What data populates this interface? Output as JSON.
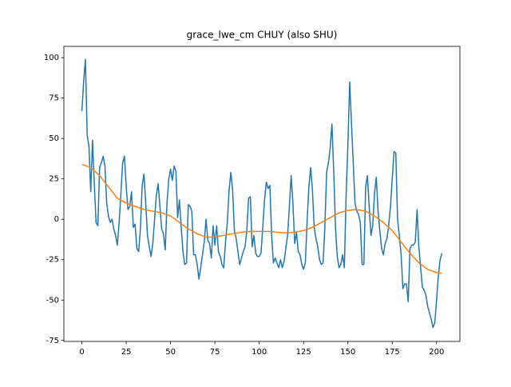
{
  "chart_data": {
    "type": "line",
    "title": "grace_lwe_cm CHUY (also SHU)",
    "x": [
      0,
      1,
      2,
      3,
      4,
      5,
      6,
      7,
      8,
      9,
      10,
      11,
      12,
      13,
      14,
      15,
      16,
      17,
      18,
      19,
      20,
      21,
      22,
      23,
      24,
      25,
      26,
      27,
      28,
      29,
      30,
      31,
      32,
      33,
      34,
      35,
      36,
      37,
      38,
      39,
      40,
      41,
      42,
      43,
      44,
      45,
      46,
      47,
      48,
      49,
      50,
      51,
      52,
      53,
      54,
      55,
      56,
      57,
      58,
      59,
      60,
      61,
      62,
      63,
      64,
      65,
      66,
      67,
      68,
      69,
      70,
      71,
      72,
      73,
      74,
      75,
      76,
      77,
      78,
      79,
      80,
      81,
      82,
      83,
      84,
      85,
      86,
      87,
      88,
      89,
      90,
      91,
      92,
      93,
      94,
      95,
      96,
      97,
      98,
      99,
      100,
      101,
      102,
      103,
      104,
      105,
      106,
      107,
      108,
      109,
      110,
      111,
      112,
      113,
      114,
      115,
      116,
      117,
      118,
      119,
      120,
      121,
      122,
      123,
      124,
      125,
      126,
      127,
      128,
      129,
      130,
      131,
      132,
      133,
      134,
      135,
      136,
      137,
      138,
      139,
      140,
      141,
      142,
      143,
      144,
      145,
      146,
      147,
      148,
      149,
      150,
      151,
      152,
      153,
      154,
      155,
      156,
      157,
      158,
      159,
      160,
      161,
      162,
      163,
      164,
      165,
      166,
      167,
      168,
      169,
      170,
      171,
      172,
      173,
      174,
      175,
      176,
      177,
      178,
      179,
      180,
      181,
      182,
      183,
      184,
      185,
      186,
      187,
      188,
      189,
      190,
      191,
      192,
      193,
      194,
      195,
      196,
      197,
      198,
      199,
      200,
      201,
      202,
      203
    ],
    "series": [
      {
        "color": "#1f77b4",
        "values": [
          67,
          85,
          99,
          52,
          45,
          17,
          49,
          22,
          -2,
          -4,
          32,
          35,
          39,
          33,
          10,
          2,
          -2,
          0,
          -6,
          -10,
          -16,
          -2,
          16,
          35,
          39,
          20,
          6,
          8,
          17,
          -5,
          -3,
          -18,
          -20,
          -6,
          21,
          28,
          10,
          -10,
          -17,
          -23,
          -15,
          0,
          15,
          22,
          8,
          -6,
          -9,
          -19,
          10,
          25,
          31,
          24,
          33,
          30,
          1,
          12,
          -5,
          -20,
          -28,
          -27,
          9,
          8,
          5,
          -22,
          -22,
          -28,
          -37,
          -30,
          -22,
          -14,
          0,
          -13,
          -15,
          -24,
          -4,
          -16,
          -4,
          -20,
          -23,
          -28,
          -30,
          -14,
          -2,
          18,
          29,
          18,
          -7,
          -12,
          -20,
          -28,
          -24,
          -20,
          -17,
          -7,
          13,
          14,
          -17,
          -10,
          -21,
          -23,
          -23,
          -21,
          -5,
          12,
          23,
          19,
          21,
          -10,
          -27,
          -24,
          -27,
          -30,
          -25,
          -30,
          -26,
          -18,
          -10,
          8,
          27,
          10,
          -15,
          -8,
          -20,
          -22,
          -28,
          -31,
          -27,
          -1,
          20,
          32,
          18,
          -5,
          -12,
          -17,
          -25,
          -28,
          -27,
          -5,
          29,
          35,
          44,
          59,
          30,
          -5,
          -23,
          -30,
          -28,
          -22,
          -30,
          15,
          46,
          85,
          60,
          35,
          10,
          5,
          3,
          -2,
          -28,
          -28,
          20,
          27,
          8,
          -10,
          -4,
          16,
          26,
          5,
          -7,
          -18,
          -22,
          -15,
          -12,
          -4,
          8,
          25,
          42,
          41,
          0,
          -10,
          -22,
          -43,
          -40,
          -40,
          -51,
          -18,
          -16,
          -16,
          -14,
          6,
          -17,
          -30,
          -42,
          -44,
          -47,
          -54,
          -58,
          -62,
          -67,
          -64,
          -50,
          -35,
          -25,
          -21
        ]
      },
      {
        "color": "#ff7f0e",
        "values": [
          34,
          33.6,
          33.2,
          32.8,
          32.4,
          32,
          31,
          30,
          29,
          28,
          27,
          25.6,
          24.2,
          22.8,
          21.4,
          20,
          18.6,
          17.2,
          15.8,
          14.4,
          13,
          12.4,
          11.8,
          11.2,
          10.6,
          10,
          9.6,
          9.2,
          8.8,
          8.4,
          8,
          7.6,
          7.2,
          6.8,
          6.4,
          6,
          5.8,
          5.6,
          5.4,
          5.2,
          5,
          4.8,
          4.6,
          4.4,
          4.2,
          4,
          3.6,
          3.2,
          2.8,
          2.4,
          2,
          1.2,
          0.4,
          -0.4,
          -1.2,
          -2,
          -2.8,
          -3.6,
          -4.4,
          -5.2,
          -6,
          -6.6,
          -7.2,
          -7.8,
          -8.4,
          -9,
          -9.4,
          -9.8,
          -10.2,
          -10.6,
          -11,
          -11,
          -11,
          -11,
          -11,
          -11,
          -10.8,
          -10.6,
          -10.4,
          -10.2,
          -10,
          -9.8,
          -9.6,
          -9.4,
          -9.2,
          -9,
          -8.8,
          -8.6,
          -8.4,
          -8.2,
          -8,
          -7.9,
          -7.8,
          -7.7,
          -7.6,
          -7.5,
          -7.5,
          -7.5,
          -7.5,
          -7.5,
          -7.5,
          -7.5,
          -7.5,
          -7.5,
          -7.5,
          -7.5,
          -7.6,
          -7.7,
          -7.8,
          -7.9,
          -8,
          -8.1,
          -8.2,
          -8.3,
          -8.4,
          -8.5,
          -8.4,
          -8.3,
          -8.2,
          -8.1,
          -8,
          -7.8,
          -7.6,
          -7.4,
          -7.2,
          -7,
          -6.6,
          -6.2,
          -5.8,
          -5.4,
          -5,
          -4.4,
          -3.8,
          -3.2,
          -2.6,
          -2,
          -1.4,
          -0.8,
          -0.2,
          0.4,
          1,
          1.6,
          2.2,
          2.8,
          3.4,
          4,
          4.3,
          4.6,
          4.9,
          5.2,
          5.5,
          5.6,
          5.7,
          5.8,
          5.9,
          6,
          5.8,
          5.6,
          5.4,
          5.2,
          5,
          4.4,
          3.8,
          3.2,
          2.6,
          2,
          1.2,
          0.4,
          -0.4,
          -1.2,
          -2,
          -3,
          -4,
          -5,
          -6,
          -7,
          -8.4,
          -9.8,
          -11.2,
          -12.6,
          -14,
          -15.4,
          -16.8,
          -18.2,
          -19.6,
          -21,
          -22.2,
          -23.4,
          -24.6,
          -25.8,
          -27,
          -27.8,
          -28.6,
          -29.4,
          -30.2,
          -31,
          -31.4,
          -31.8,
          -32.2,
          -32.6,
          -33,
          -33.2,
          -33.3,
          -33.5
        ]
      }
    ],
    "xlim": [
      -10.15,
      213.15
    ],
    "ylim": [
      -75.6,
      107
    ],
    "xticks": [
      0,
      25,
      50,
      75,
      100,
      125,
      150,
      175,
      200
    ],
    "yticks": [
      -75,
      -50,
      -25,
      0,
      25,
      50,
      75,
      100
    ]
  }
}
